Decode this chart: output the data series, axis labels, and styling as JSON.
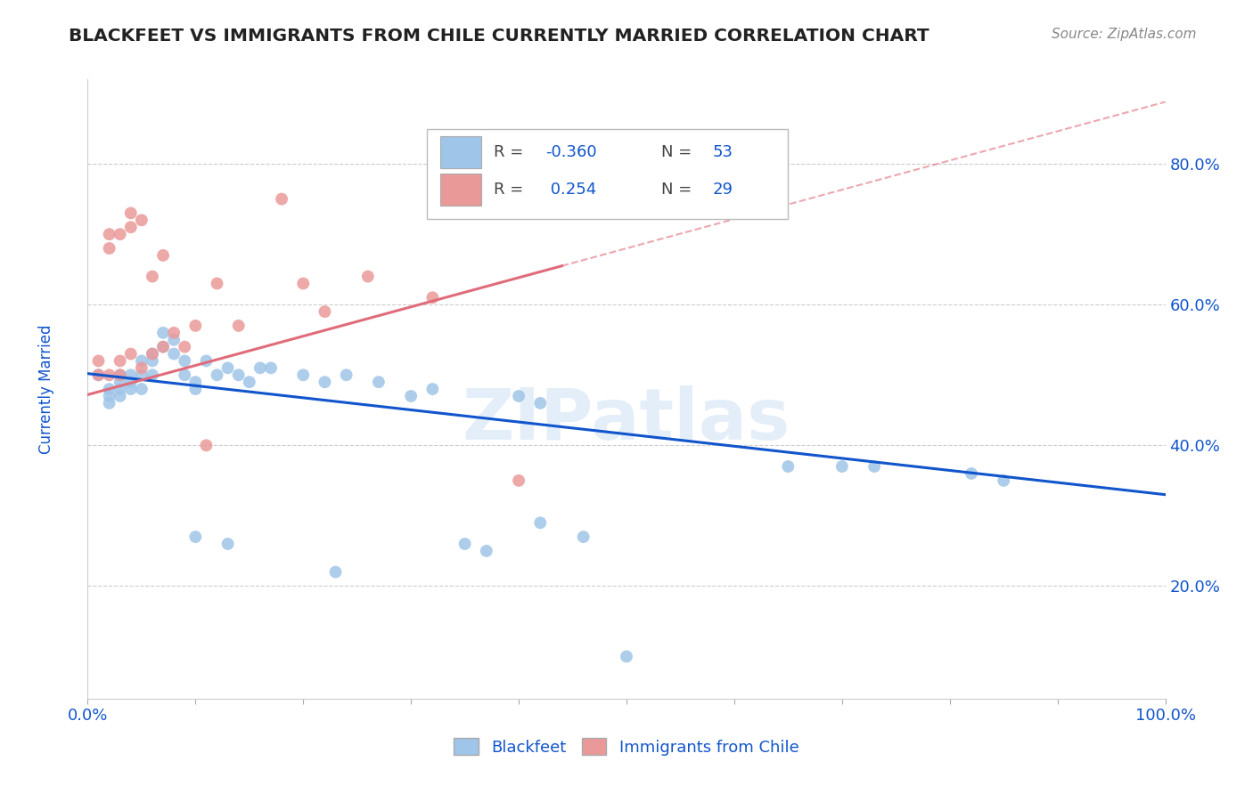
{
  "title": "BLACKFEET VS IMMIGRANTS FROM CHILE CURRENTLY MARRIED CORRELATION CHART",
  "source": "Source: ZipAtlas.com",
  "legend_blue_label": "Blackfeet",
  "legend_pink_label": "Immigrants from Chile",
  "blue_R": "-0.360",
  "blue_N": "53",
  "pink_R": "0.254",
  "pink_N": "29",
  "blue_scatter_x": [
    0.01,
    0.02,
    0.02,
    0.02,
    0.03,
    0.03,
    0.03,
    0.03,
    0.04,
    0.04,
    0.04,
    0.05,
    0.05,
    0.05,
    0.06,
    0.06,
    0.06,
    0.07,
    0.07,
    0.08,
    0.08,
    0.09,
    0.09,
    0.1,
    0.1,
    0.11,
    0.12,
    0.13,
    0.14,
    0.15,
    0.16,
    0.17,
    0.2,
    0.22,
    0.24,
    0.27,
    0.3,
    0.32,
    0.4,
    0.42,
    0.65,
    0.7,
    0.73,
    0.82,
    0.85,
    0.1,
    0.13,
    0.35,
    0.37,
    0.42,
    0.46,
    0.23,
    0.5
  ],
  "blue_scatter_y": [
    0.5,
    0.48,
    0.47,
    0.46,
    0.5,
    0.49,
    0.48,
    0.47,
    0.5,
    0.49,
    0.48,
    0.52,
    0.5,
    0.48,
    0.53,
    0.52,
    0.5,
    0.56,
    0.54,
    0.55,
    0.53,
    0.52,
    0.5,
    0.49,
    0.48,
    0.52,
    0.5,
    0.51,
    0.5,
    0.49,
    0.51,
    0.51,
    0.5,
    0.49,
    0.5,
    0.49,
    0.47,
    0.48,
    0.47,
    0.46,
    0.37,
    0.37,
    0.37,
    0.36,
    0.35,
    0.27,
    0.26,
    0.26,
    0.25,
    0.29,
    0.27,
    0.22,
    0.1
  ],
  "pink_scatter_x": [
    0.01,
    0.01,
    0.02,
    0.02,
    0.02,
    0.03,
    0.03,
    0.03,
    0.04,
    0.04,
    0.04,
    0.05,
    0.05,
    0.06,
    0.06,
    0.07,
    0.07,
    0.08,
    0.09,
    0.1,
    0.11,
    0.12,
    0.14,
    0.18,
    0.2,
    0.22,
    0.26,
    0.32,
    0.4
  ],
  "pink_scatter_y": [
    0.5,
    0.52,
    0.7,
    0.68,
    0.5,
    0.5,
    0.52,
    0.7,
    0.73,
    0.53,
    0.71,
    0.51,
    0.72,
    0.64,
    0.53,
    0.67,
    0.54,
    0.56,
    0.54,
    0.57,
    0.4,
    0.63,
    0.57,
    0.75,
    0.63,
    0.59,
    0.64,
    0.61,
    0.35
  ],
  "blue_line_x": [
    0.0,
    1.0
  ],
  "blue_line_y": [
    0.502,
    0.33
  ],
  "pink_solid_line_x": [
    0.0,
    0.44
  ],
  "pink_solid_line_y": [
    0.472,
    0.655
  ],
  "pink_dashed_line_x": [
    0.44,
    1.0
  ],
  "pink_dashed_line_y": [
    0.655,
    0.888
  ],
  "xlim": [
    0.0,
    1.0
  ],
  "ylim": [
    0.04,
    0.92
  ],
  "yticks": [
    0.2,
    0.4,
    0.6,
    0.8
  ],
  "ytick_labels": [
    "20.0%",
    "40.0%",
    "60.0%",
    "80.0%"
  ],
  "xticks": [
    0.0,
    0.1,
    0.2,
    0.3,
    0.4,
    0.5,
    0.6,
    0.7,
    0.8,
    0.9,
    1.0
  ],
  "xtick_labels": [
    "0.0%",
    "",
    "",
    "",
    "",
    "",
    "",
    "",
    "",
    "",
    "100.0%"
  ],
  "background_color": "#ffffff",
  "blue_color": "#9fc5e8",
  "pink_color": "#ea9999",
  "blue_line_color": "#1155cc",
  "pink_line_color": "#e06c7a",
  "grid_color": "#cccccc",
  "text_color": "#1155cc",
  "watermark": "ZIPatlas"
}
